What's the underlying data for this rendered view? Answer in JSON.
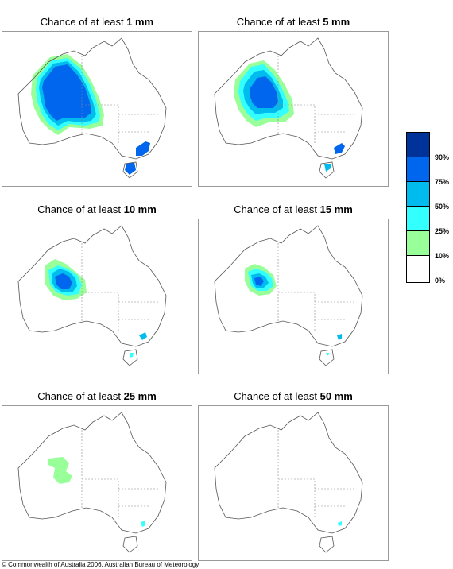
{
  "panels": [
    {
      "prefix": "Chance of at least",
      "amount": "1 mm"
    },
    {
      "prefix": "Chance of at least",
      "amount": "5 mm"
    },
    {
      "prefix": "Chance of at least",
      "amount": "10 mm"
    },
    {
      "prefix": "Chance of at least",
      "amount": "15 mm"
    },
    {
      "prefix": "Chance of at least",
      "amount": "25 mm"
    },
    {
      "prefix": "Chance of at least",
      "amount": "50 mm"
    }
  ],
  "legend": {
    "labels": [
      "90%",
      "75%",
      "50%",
      "25%",
      "10%",
      "0%"
    ],
    "colors": [
      "#003399",
      "#0066ee",
      "#00bbee",
      "#33ffff",
      "#99ff99",
      "#ffffff"
    ]
  },
  "copyright": "© Commonwealth of Australia 2006, Australian Bureau of Meteorology"
}
